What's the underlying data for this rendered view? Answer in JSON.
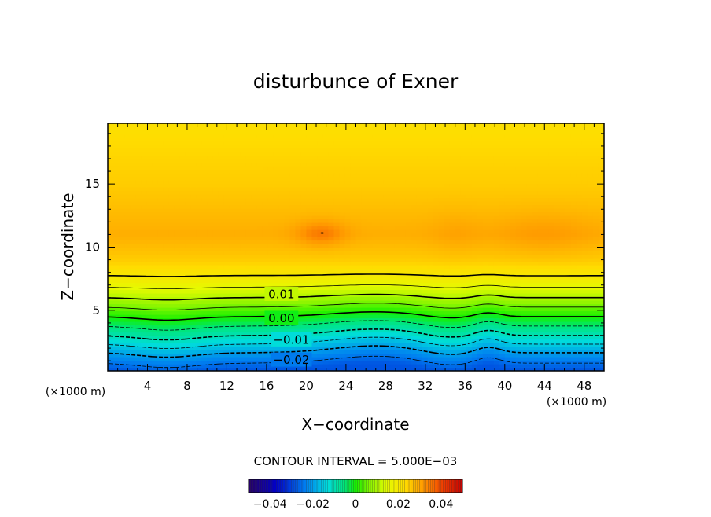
{
  "chart_data": {
    "type": "heatmap",
    "title": "disturbunce of Exner",
    "xlabel": "X−coordinate",
    "ylabel": "Z−coordinate",
    "x_unit": "(×1000 m)",
    "z_unit": "(×1000 m)",
    "xlim": [
      0,
      50
    ],
    "ylim": [
      0.2,
      19.8
    ],
    "x_ticks": [
      4,
      8,
      12,
      16,
      20,
      24,
      28,
      32,
      36,
      40,
      44,
      48
    ],
    "y_ticks": [
      5,
      10,
      15
    ],
    "contour_interval_text": "CONTOUR INTERVAL = 5.000E−03",
    "contour_labels": [
      {
        "text": "0.01",
        "x": 17.5,
        "z": 6.3
      },
      {
        "text": "0.00",
        "x": 17.5,
        "z": 4.4
      },
      {
        "text": "−0.01",
        "x": 18.5,
        "z": 2.7
      },
      {
        "text": "−0.02",
        "x": 18.5,
        "z": 1.1
      }
    ],
    "colorbar": {
      "range": [
        -0.05,
        0.05
      ],
      "tick_values": [
        -0.04,
        -0.02,
        0,
        0.02,
        0.04
      ],
      "tick_labels": [
        "−0.04",
        "−0.02",
        "0",
        "0.02",
        "0.04"
      ]
    },
    "profile": {
      "z": [
        0.3,
        1.5,
        3,
        4.5,
        6,
        7.5,
        9,
        11,
        13,
        15,
        17,
        19.8
      ],
      "value": [
        -0.028,
        -0.021,
        -0.01,
        0.0,
        0.01,
        0.019,
        0.025,
        0.029,
        0.027,
        0.025,
        0.024,
        0.022
      ]
    },
    "warm_anomaly": {
      "x": 21.5,
      "z": 11.1,
      "half_width": 2.0,
      "half_height": 0.8,
      "contour_value": 0.035
    }
  }
}
